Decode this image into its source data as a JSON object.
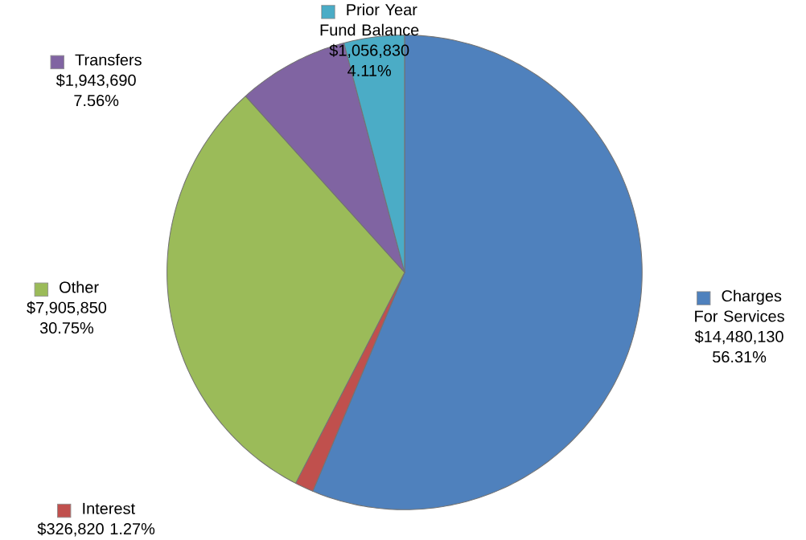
{
  "chart_data": {
    "type": "pie",
    "categories": [
      "Charges For Services",
      "Interest",
      "Other",
      "Transfers",
      "Prior Year Fund Balance"
    ],
    "values": [
      14480130,
      326820,
      7905850,
      1943690,
      1056830
    ],
    "legend": "left",
    "colors": [
      "#4f81bd",
      "#c0504d",
      "#9bbb59",
      "#8064a2",
      "#4bacc6"
    ],
    "value_labels": [
      "$14,480,130 56.31%",
      "$326,820 1.27%",
      "$7,905,850 30.75%",
      "$1,943,690 7.56%",
      "$1,056,830 4.11%"
    ]
  }
}
